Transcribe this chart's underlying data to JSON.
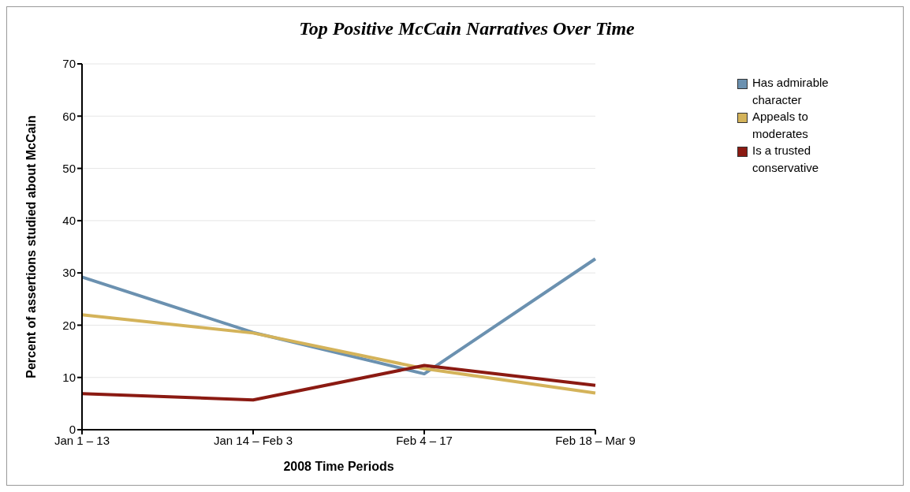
{
  "chart_data": {
    "type": "line",
    "title": "Top Positive McCain Narratives Over Time",
    "xlabel": "2008 Time Periods",
    "ylabel": "Percent of assertions studied about McCain",
    "categories": [
      "Jan 1 – 13",
      "Jan 14 – Feb 3",
      "Feb 4 – 17",
      "Feb 18 – Mar 9"
    ],
    "series": [
      {
        "name": "Has admirable character",
        "color": "#6b91b0",
        "values": [
          29.2,
          18.6,
          10.7,
          32.7
        ]
      },
      {
        "name": "Appeals to moderates",
        "color": "#d4b35a",
        "values": [
          22,
          18.5,
          11.7,
          7
        ]
      },
      {
        "name": "Is a trusted conservative",
        "color": "#8b1a12",
        "values": [
          6.9,
          5.7,
          12.3,
          8.5
        ]
      }
    ],
    "ylim": [
      0,
      70
    ],
    "yticks": [
      0,
      10,
      20,
      30,
      40,
      50,
      60,
      70
    ],
    "grid": "y",
    "legend": "top right",
    "marker": "none",
    "line_style": "solid"
  }
}
